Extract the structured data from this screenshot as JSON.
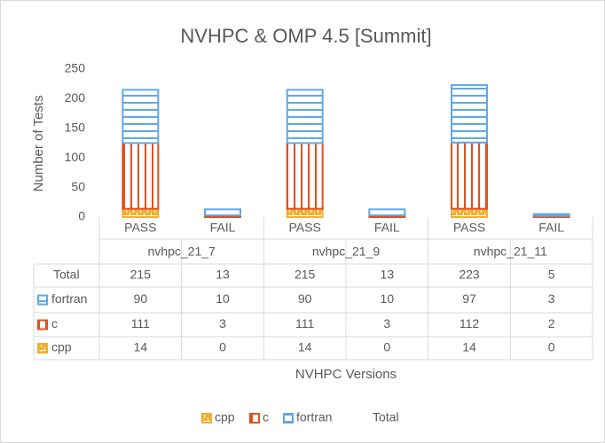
{
  "chart_data": {
    "type": "bar",
    "stacked": true,
    "title": "NVHPC & OMP 4.5 [Summit]",
    "y_label": "Number of Tests",
    "x_label": "NVHPC Versions",
    "groups": [
      "nvhpc_21_7",
      "nvhpc_21_9",
      "nvhpc_21_11"
    ],
    "categories": [
      "PASS",
      "FAIL",
      "PASS",
      "FAIL",
      "PASS",
      "FAIL"
    ],
    "series": [
      {
        "name": "cpp",
        "color": "#f0b030",
        "pattern": "brick",
        "values": [
          14,
          0,
          14,
          0,
          14,
          0
        ]
      },
      {
        "name": "c",
        "color": "#e2501e",
        "pattern": "vertical",
        "values": [
          111,
          3,
          111,
          3,
          112,
          2
        ]
      },
      {
        "name": "fortran",
        "color": "#5ea8ea",
        "pattern": "horizontal",
        "values": [
          90,
          10,
          90,
          10,
          97,
          3
        ]
      },
      {
        "name": "Total",
        "values": [
          215,
          13,
          215,
          13,
          223,
          5
        ]
      }
    ],
    "ylim": [
      0,
      250
    ],
    "yticks": [
      0,
      50,
      100,
      150,
      200,
      250
    ],
    "grid": false,
    "legend": "bottom"
  }
}
